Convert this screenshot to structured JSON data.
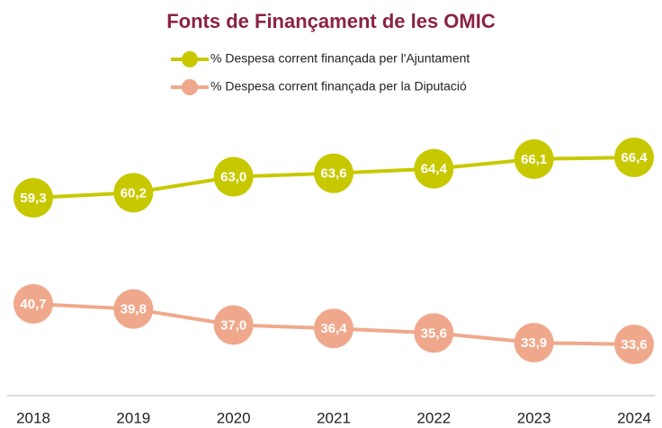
{
  "chart_data": {
    "type": "line",
    "title": "Fonts de Finançament de les OMIC",
    "categories": [
      "2018",
      "2019",
      "2020",
      "2021",
      "2022",
      "2023",
      "2024"
    ],
    "series": [
      {
        "name": "% Despesa corrent finançada per l'Ajuntament",
        "color": "#c8c800",
        "values": [
          59.3,
          60.2,
          63.0,
          63.6,
          64.4,
          66.1,
          66.4
        ],
        "value_labels": [
          "59,3",
          "60,2",
          "63,0",
          "63,6",
          "64,4",
          "66,1",
          "66,4"
        ]
      },
      {
        "name": "% Despesa corrent finançada per la Diputació",
        "color": "#f0a88c",
        "values": [
          40.7,
          39.8,
          37.0,
          36.4,
          35.6,
          33.9,
          33.6
        ],
        "value_labels": [
          "40,7",
          "39,8",
          "37,0",
          "36,4",
          "35,6",
          "33,9",
          "33,6"
        ]
      }
    ]
  }
}
